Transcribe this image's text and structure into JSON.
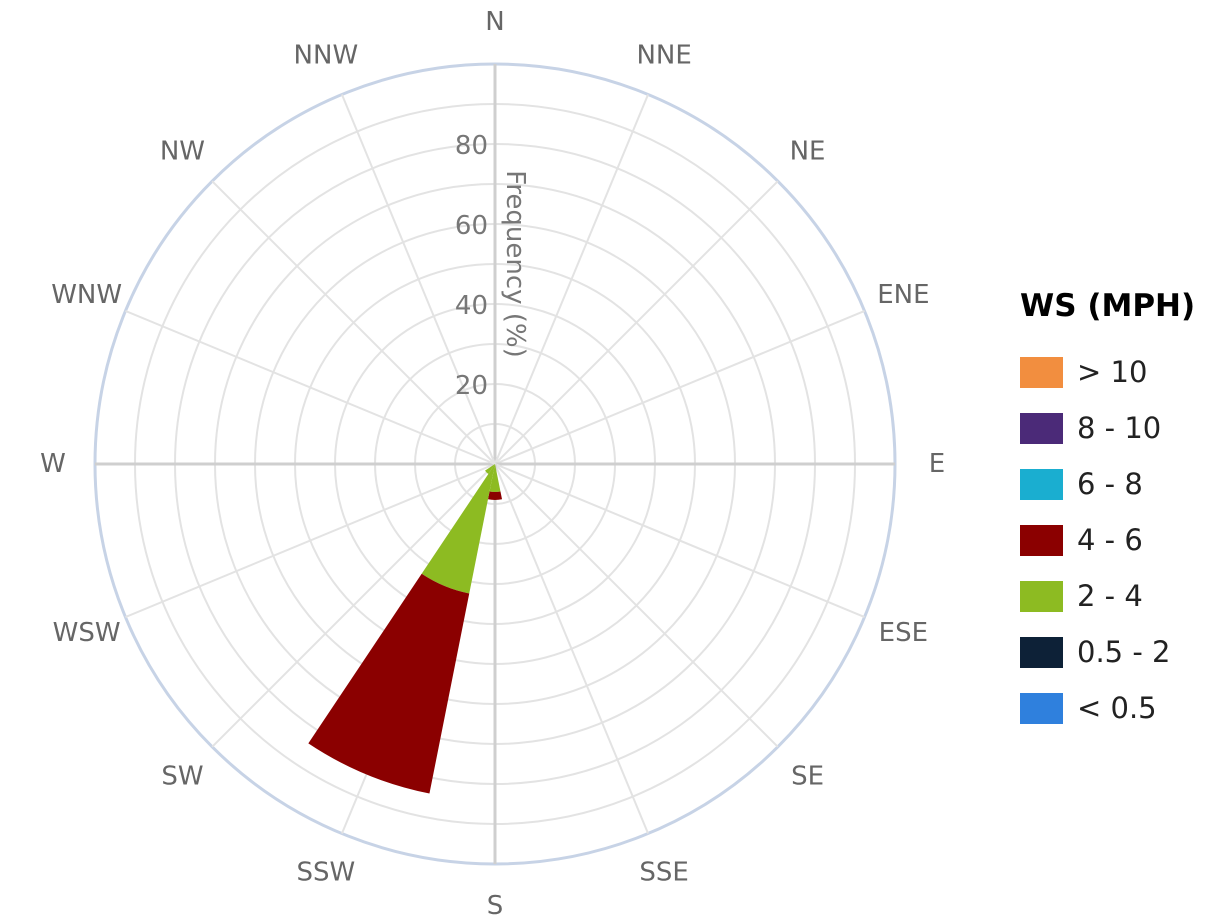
{
  "chart_data": {
    "type": "polar-bar",
    "subtype": "wind-rose",
    "radial_axis_title": "Frequency (%)",
    "radial_ticks": [
      20,
      40,
      60,
      80
    ],
    "radial_range": [
      0,
      100
    ],
    "directions": [
      "N",
      "NNE",
      "NE",
      "ENE",
      "E",
      "ESE",
      "SE",
      "SSE",
      "S",
      "SSW",
      "SW",
      "WSW",
      "W",
      "WNW",
      "NW",
      "NNW"
    ],
    "legend_title": "WS (MPH)",
    "legend_position": "right",
    "grid": true,
    "series": [
      {
        "name": "> 10",
        "color": "#F28E3F",
        "values": [
          0,
          0,
          0,
          0,
          0,
          0,
          0,
          0,
          0,
          0,
          0,
          0,
          0,
          0,
          0,
          0
        ]
      },
      {
        "name": "8 - 10",
        "color": "#4B2A78",
        "values": [
          0,
          0,
          0,
          0,
          0,
          0,
          0,
          0,
          0,
          0,
          0,
          0,
          0,
          0,
          0,
          0
        ]
      },
      {
        "name": "6 - 8",
        "color": "#1AAED0",
        "values": [
          0,
          0,
          0,
          0,
          0,
          0,
          0,
          0,
          0,
          0,
          0,
          0,
          0,
          0,
          0,
          0
        ]
      },
      {
        "name": "4 - 6",
        "color": "#8B0000",
        "values": [
          0,
          0,
          0,
          0,
          0,
          0,
          0,
          0,
          2,
          51,
          0,
          0,
          0,
          0,
          0,
          0
        ]
      },
      {
        "name": "2 - 4",
        "color": "#8DBB22",
        "values": [
          0,
          0,
          0,
          0,
          0,
          0,
          0,
          0,
          7,
          33,
          3,
          0,
          0,
          0,
          0,
          0
        ]
      },
      {
        "name": "0.5 - 2",
        "color": "#0D2137",
        "values": [
          0,
          0,
          0,
          0,
          0,
          0,
          0,
          0,
          0,
          0,
          0,
          0,
          0,
          0,
          0,
          0
        ]
      },
      {
        "name": "< 0.5",
        "color": "#2F80DD",
        "values": [
          0,
          0,
          0,
          0,
          0,
          0,
          0,
          0,
          0,
          0,
          0,
          0,
          0,
          0,
          0,
          0
        ]
      }
    ]
  }
}
